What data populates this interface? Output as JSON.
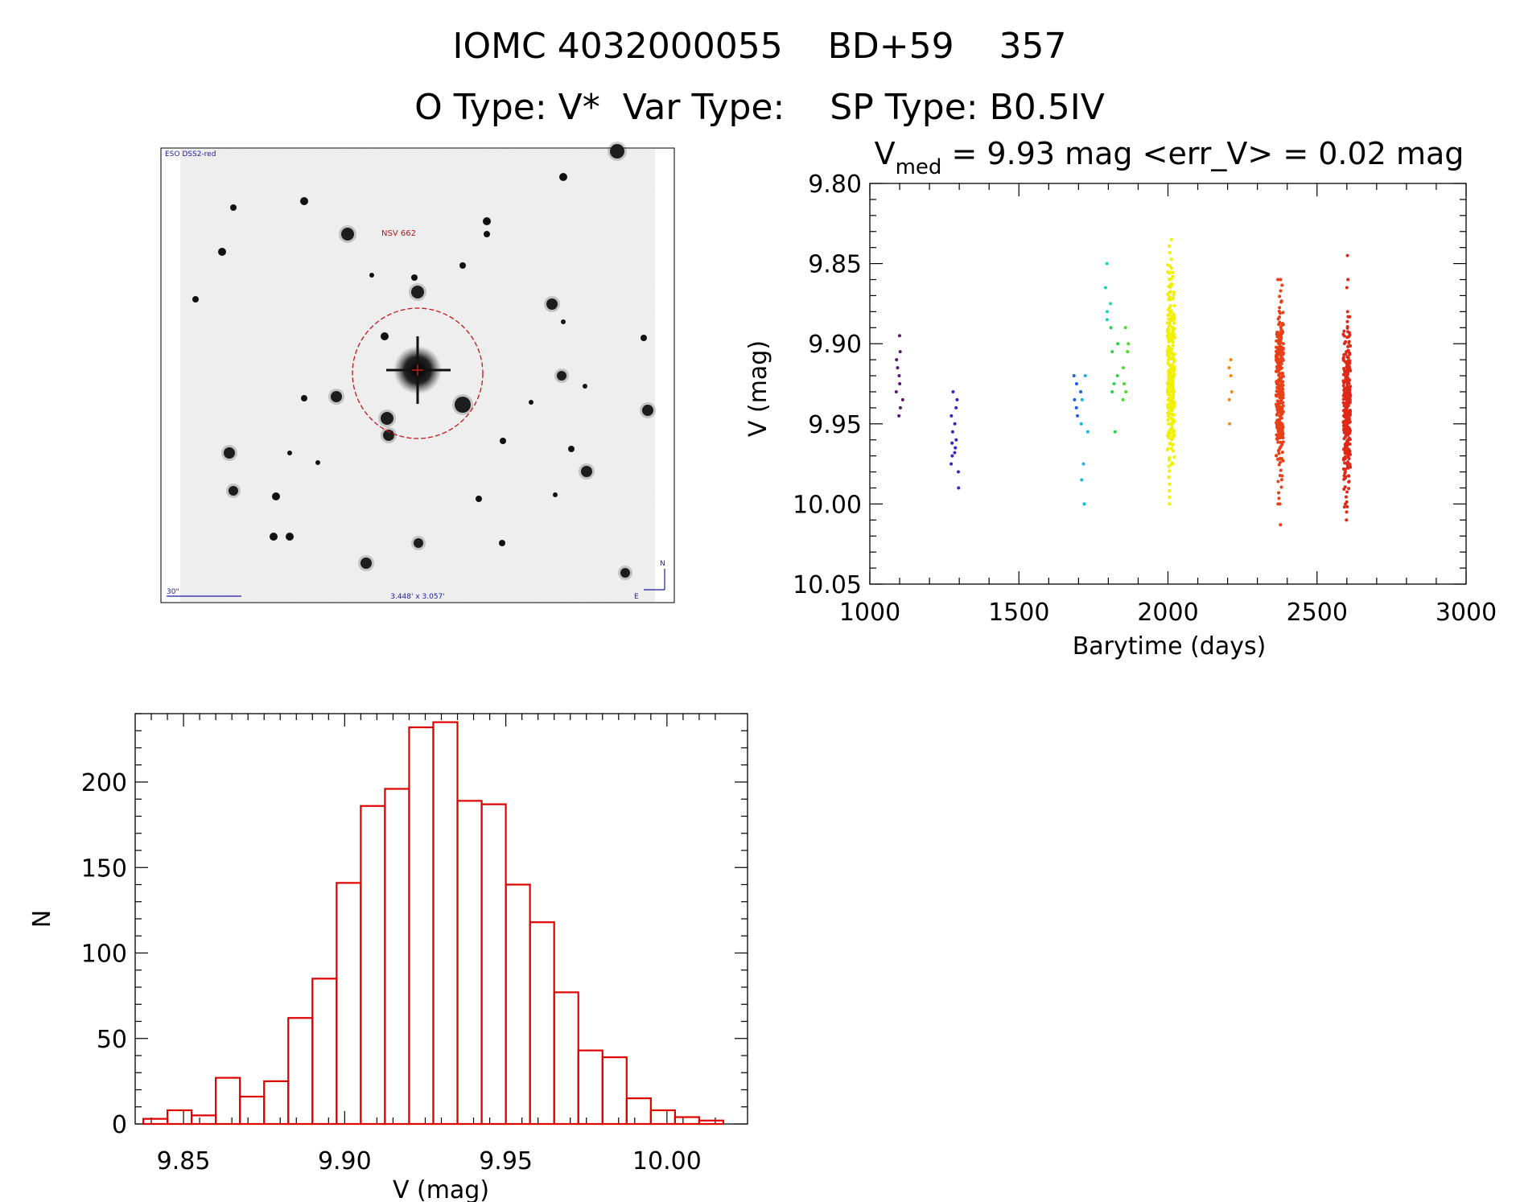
{
  "header": {
    "title_line1": "IOMC 4032000055    BD+59    357",
    "title_line2": "O Type: V*  Var Type:    SP Type: B0.5IV"
  },
  "finder": {
    "survey_label": "ESO DSS2-red",
    "target_label": "NSV 662",
    "scale_label": "30\"",
    "size_label": "3.448' x 3.057'",
    "north_label": "N",
    "east_label": "E"
  },
  "chart_data": [
    {
      "type": "scatter",
      "title_prefix": "V",
      "title_subscript": "med",
      "title_rest": " = 9.93 mag <err_V> = 0.02 mag",
      "xlabel": "Barytime (days)",
      "ylabel": "V (mag)",
      "xlim": [
        1000,
        3000
      ],
      "ylim": [
        10.05,
        9.8
      ],
      "xticks": [
        1000,
        1500,
        2000,
        2500,
        3000
      ],
      "xtick_labels": [
        "1000",
        "1500",
        "2000",
        "2500",
        "3000"
      ],
      "yticks": [
        9.8,
        9.85,
        9.9,
        9.95,
        10.0,
        10.05
      ],
      "ytick_labels": [
        "9.80",
        "9.85",
        "9.90",
        "9.95",
        "10.00",
        "10.05"
      ],
      "series": [
        {
          "name": "season-1",
          "x": 1100,
          "color": "#5a1670",
          "points": [
            9.895,
            9.905,
            9.91,
            9.915,
            9.92,
            9.925,
            9.93,
            9.935,
            9.94,
            9.945
          ]
        },
        {
          "name": "season-2",
          "x": 1285,
          "color": "#3a22c8",
          "points": [
            9.93,
            9.935,
            9.94,
            9.945,
            9.95,
            9.955,
            9.96,
            9.962,
            9.965,
            9.968,
            9.97,
            9.975,
            9.98,
            9.99
          ]
        },
        {
          "name": "season-3",
          "x": 1695,
          "color": "#1a60e0",
          "points": [
            9.92,
            9.925,
            9.93,
            9.935,
            9.94,
            9.945
          ]
        },
        {
          "name": "season-4",
          "x": 1718,
          "color": "#10b8e8",
          "points": [
            9.92,
            9.935,
            9.95,
            9.955,
            9.975,
            9.985,
            10.0
          ]
        },
        {
          "name": "season-5",
          "x": 1800,
          "color": "#18d8b8",
          "points": [
            9.85,
            9.865,
            9.875,
            9.88,
            9.885
          ]
        },
        {
          "name": "season-6",
          "x": 1820,
          "color": "#28d840",
          "points": [
            9.89,
            9.9,
            9.905,
            9.92,
            9.925,
            9.93,
            9.955
          ]
        },
        {
          "name": "season-7",
          "x": 1860,
          "color": "#48e028",
          "points": [
            9.89,
            9.9,
            9.905,
            9.915,
            9.925,
            9.93,
            9.935
          ]
        }
      ],
      "dense_series": [
        {
          "name": "season-8",
          "x": 2010,
          "color": "#f0f000",
          "min": 9.835,
          "max": 10.0
        },
        {
          "name": "season-10",
          "x": 2375,
          "color": "#e84018",
          "min": 9.86,
          "max": 10.0
        },
        {
          "name": "season-11",
          "x": 2600,
          "color": "#e02818",
          "min": 9.88,
          "max": 10.005
        }
      ],
      "extra_points": [
        {
          "name": "season-9",
          "x": 2210,
          "color": "#f08818",
          "points": [
            9.91,
            9.915,
            9.92,
            9.93,
            9.935,
            9.95
          ]
        },
        {
          "name": "season-10-outliers",
          "x": 2375,
          "color": "#e84018",
          "points": [
            9.86,
            10.0,
            10.013
          ]
        },
        {
          "name": "season-11-outliers",
          "x": 2600,
          "color": "#e02818",
          "points": [
            9.845,
            9.86,
            9.865,
            10.0,
            10.01
          ]
        }
      ]
    },
    {
      "type": "bar",
      "subtype": "histogram",
      "xlabel": "V (mag)",
      "ylabel": "N",
      "xlim": [
        9.835,
        10.025
      ],
      "ylim": [
        0,
        240
      ],
      "bin_width": 0.0075,
      "bin_start": 9.8375,
      "values": [
        3,
        8,
        5,
        27,
        16,
        25,
        62,
        85,
        141,
        186,
        196,
        232,
        235,
        189,
        187,
        140,
        118,
        77,
        43,
        39,
        15,
        8,
        4,
        2
      ],
      "xticks": [
        9.85,
        9.9,
        9.95,
        10.0
      ],
      "xtick_labels": [
        "9.85",
        "9.90",
        "9.95",
        "10.00"
      ],
      "yticks": [
        0,
        50,
        100,
        150,
        200
      ],
      "ytick_labels": [
        "0",
        "50",
        "100",
        "150",
        "200"
      ],
      "color": "#e00000"
    }
  ]
}
